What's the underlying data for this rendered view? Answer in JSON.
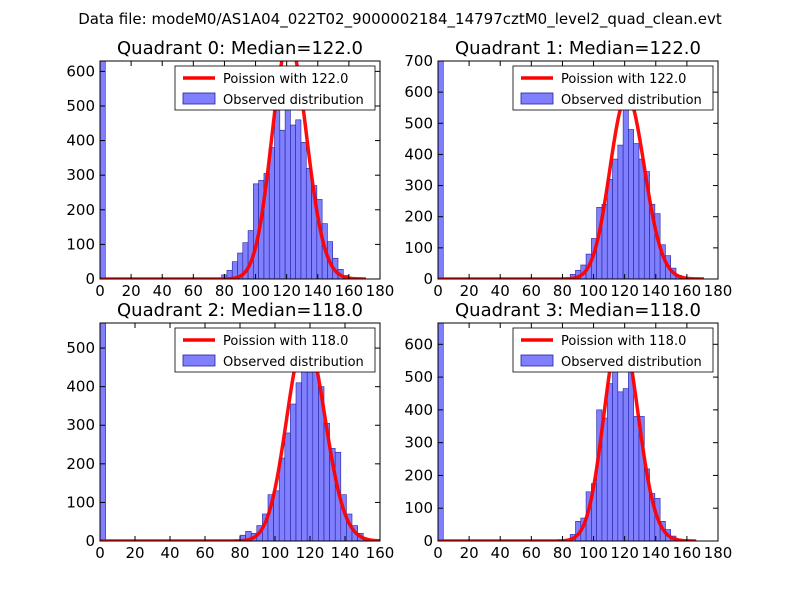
{
  "suptitle": "Data file: modeM0/AS1A04_022T02_9000002184_14797cztM0_level2_quad_clean.evt",
  "colors": {
    "bar_fill": "#8080ff",
    "bar_edge": "#2020a0",
    "poisson_line": "#ff0000",
    "axes": "#000000"
  },
  "chart_data": [
    {
      "type": "bar",
      "title": "Quadrant 0: Median=122.0",
      "median": 122.0,
      "xlim": [
        0,
        180
      ],
      "ylim": [
        0,
        630
      ],
      "xticks": [
        "0",
        "20",
        "40",
        "60",
        "80",
        "100",
        "120",
        "140",
        "160",
        "180"
      ],
      "yticks": [
        "0",
        "100",
        "200",
        "300",
        "400",
        "500",
        "600"
      ],
      "legend": {
        "placement": "upper-right",
        "line_label": "Poission with 122.0",
        "bar_label": "Observed distribution"
      },
      "bin_width": 3.4,
      "bins": [
        [
          0,
          630
        ],
        [
          78.2,
          12
        ],
        [
          81.6,
          25
        ],
        [
          85,
          50
        ],
        [
          88.4,
          75
        ],
        [
          91.8,
          105
        ],
        [
          95.2,
          140
        ],
        [
          98.6,
          275
        ],
        [
          102,
          285
        ],
        [
          105.4,
          305
        ],
        [
          108.8,
          380
        ],
        [
          112.2,
          495
        ],
        [
          115.6,
          430
        ],
        [
          119,
          540
        ],
        [
          122.4,
          445
        ],
        [
          125.8,
          460
        ],
        [
          129.2,
          395
        ],
        [
          132.6,
          320
        ],
        [
          136,
          270
        ],
        [
          139.4,
          230
        ],
        [
          142.8,
          160
        ],
        [
          146.2,
          108
        ],
        [
          149.6,
          60
        ],
        [
          153,
          28
        ],
        [
          156.4,
          10
        ]
      ]
    },
    {
      "type": "bar",
      "title": "Quadrant 1: Median=122.0",
      "median": 122.0,
      "xlim": [
        0,
        180
      ],
      "ylim": [
        0,
        700
      ],
      "xticks": [
        "0",
        "20",
        "40",
        "60",
        "80",
        "100",
        "120",
        "140",
        "160",
        "180"
      ],
      "yticks": [
        "0",
        "100",
        "200",
        "300",
        "400",
        "500",
        "600",
        "700"
      ],
      "legend": {
        "placement": "upper-right",
        "line_label": "Poission with 122.0",
        "bar_label": "Observed distribution"
      },
      "bin_width": 3.4,
      "bins": [
        [
          0,
          700
        ],
        [
          85,
          15
        ],
        [
          88.4,
          28
        ],
        [
          91.8,
          45
        ],
        [
          95.2,
          80
        ],
        [
          98.6,
          130
        ],
        [
          102,
          230
        ],
        [
          105.4,
          240
        ],
        [
          108.8,
          320
        ],
        [
          112.2,
          385
        ],
        [
          115.6,
          430
        ],
        [
          119,
          565
        ],
        [
          122.4,
          480
        ],
        [
          125.8,
          435
        ],
        [
          129.2,
          385
        ],
        [
          132.6,
          345
        ],
        [
          136,
          240
        ],
        [
          139.4,
          210
        ],
        [
          142.8,
          110
        ],
        [
          146.2,
          75
        ],
        [
          149.6,
          35
        ],
        [
          153,
          12
        ]
      ]
    },
    {
      "type": "bar",
      "title": "Quadrant 2: Median=118.0",
      "median": 118.0,
      "xlim": [
        0,
        160
      ],
      "ylim": [
        0,
        565
      ],
      "xticks": [
        "0",
        "20",
        "40",
        "60",
        "80",
        "100",
        "120",
        "140",
        "160"
      ],
      "yticks": [
        "0",
        "100",
        "200",
        "300",
        "400",
        "500"
      ],
      "legend": {
        "placement": "upper-right",
        "line_label": "Poission with 118.0",
        "bar_label": "Observed distribution"
      },
      "bin_width": 3.2,
      "bins": [
        [
          0,
          565
        ],
        [
          80,
          15
        ],
        [
          83.2,
          25
        ],
        [
          86.4,
          20
        ],
        [
          89.6,
          40
        ],
        [
          92.8,
          70
        ],
        [
          96,
          120
        ],
        [
          99.2,
          130
        ],
        [
          102.4,
          215
        ],
        [
          105.6,
          280
        ],
        [
          108.8,
          355
        ],
        [
          112,
          410
        ],
        [
          115.2,
          515
        ],
        [
          118.4,
          440
        ],
        [
          121.6,
          445
        ],
        [
          124.8,
          400
        ],
        [
          128,
          305
        ],
        [
          131.2,
          240
        ],
        [
          134.4,
          230
        ],
        [
          137.6,
          120
        ],
        [
          140.8,
          70
        ],
        [
          144,
          40
        ],
        [
          147.2,
          20
        ],
        [
          150.4,
          5
        ]
      ]
    },
    {
      "type": "bar",
      "title": "Quadrant 3: Median=118.0",
      "median": 118.0,
      "xlim": [
        0,
        180
      ],
      "ylim": [
        0,
        665
      ],
      "xticks": [
        "0",
        "20",
        "40",
        "60",
        "80",
        "100",
        "120",
        "140",
        "160",
        "180"
      ],
      "yticks": [
        "0",
        "100",
        "200",
        "300",
        "400",
        "500",
        "600"
      ],
      "legend": {
        "placement": "upper-right",
        "line_label": "Poission with 118.0",
        "bar_label": "Observed distribution"
      },
      "bin_width": 3.4,
      "bins": [
        [
          0,
          665
        ],
        [
          85,
          20
        ],
        [
          88.4,
          60
        ],
        [
          91.8,
          70
        ],
        [
          95.2,
          150
        ],
        [
          98.6,
          175
        ],
        [
          102,
          400
        ],
        [
          105.4,
          375
        ],
        [
          108.8,
          480
        ],
        [
          112.2,
          590
        ],
        [
          115.6,
          455
        ],
        [
          119,
          465
        ],
        [
          122.4,
          555
        ],
        [
          125.8,
          380
        ],
        [
          129.2,
          380
        ],
        [
          132.6,
          220
        ],
        [
          136,
          145
        ],
        [
          139.4,
          130
        ],
        [
          142.8,
          60
        ],
        [
          146.2,
          35
        ],
        [
          149.6,
          15
        ],
        [
          153,
          6
        ]
      ]
    }
  ]
}
